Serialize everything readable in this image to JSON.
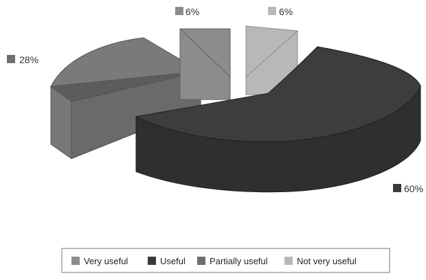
{
  "chart_data": {
    "type": "pie",
    "style": "3d-exploded",
    "categories": [
      "Very useful",
      "Useful",
      "Partially useful",
      "Not very useful"
    ],
    "values": [
      6,
      60,
      28,
      6
    ],
    "data_labels": [
      "6%",
      "60%",
      "28%",
      "6%"
    ],
    "unit": "%",
    "colors": [
      "#8c8c8c",
      "#3a3a3a",
      "#6f6f6f",
      "#b8b8b8"
    ],
    "legend": {
      "position": "bottom",
      "entries": [
        "Very useful",
        "Useful",
        "Partially useful",
        "Not very useful"
      ]
    },
    "title": ""
  }
}
